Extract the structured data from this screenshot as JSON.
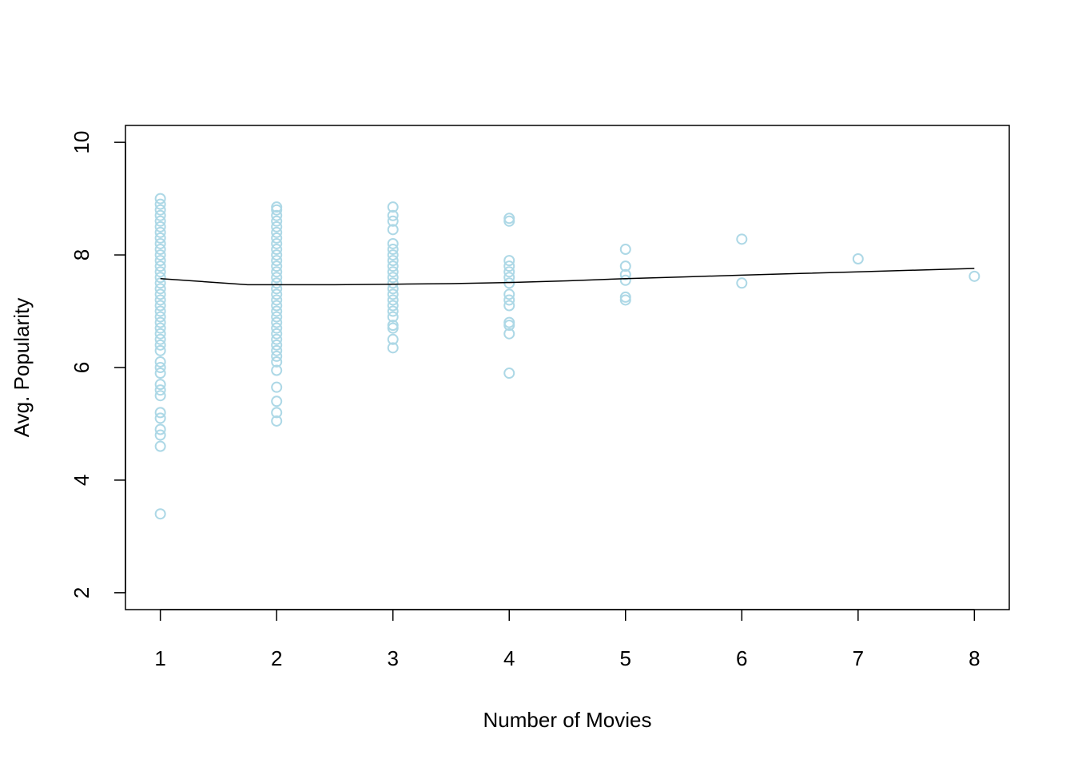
{
  "chart_data": {
    "type": "scatter",
    "title": "",
    "xlabel": "Number of Movies",
    "ylabel": "Avg. Popularity",
    "xlim": [
      0.7,
      8.3
    ],
    "ylim": [
      1.7,
      10.3
    ],
    "x_ticks": [
      1,
      2,
      3,
      4,
      5,
      6,
      7,
      8
    ],
    "y_ticks": [
      2,
      4,
      6,
      8,
      10
    ],
    "grid": false,
    "legend": "none",
    "colors": {
      "points": "#add8e6",
      "trend": "#000000",
      "frame": "#000000"
    },
    "series": [
      {
        "type": "scatter",
        "points": [
          [
            1,
            9.0
          ],
          [
            1,
            8.9
          ],
          [
            1,
            8.8
          ],
          [
            1,
            8.7
          ],
          [
            1,
            8.6
          ],
          [
            1,
            8.5
          ],
          [
            1,
            8.4
          ],
          [
            1,
            8.3
          ],
          [
            1,
            8.2
          ],
          [
            1,
            8.1
          ],
          [
            1,
            8.0
          ],
          [
            1,
            7.9
          ],
          [
            1,
            7.8
          ],
          [
            1,
            7.7
          ],
          [
            1,
            7.6
          ],
          [
            1,
            7.5
          ],
          [
            1,
            7.4
          ],
          [
            1,
            7.3
          ],
          [
            1,
            7.2
          ],
          [
            1,
            7.1
          ],
          [
            1,
            7.0
          ],
          [
            1,
            6.9
          ],
          [
            1,
            6.8
          ],
          [
            1,
            6.7
          ],
          [
            1,
            6.6
          ],
          [
            1,
            6.5
          ],
          [
            1,
            6.4
          ],
          [
            1,
            6.3
          ],
          [
            1,
            6.1
          ],
          [
            1,
            6.0
          ],
          [
            1,
            5.9
          ],
          [
            1,
            5.7
          ],
          [
            1,
            5.6
          ],
          [
            1,
            5.5
          ],
          [
            1,
            5.2
          ],
          [
            1,
            5.1
          ],
          [
            1,
            4.9
          ],
          [
            1,
            4.8
          ],
          [
            1,
            4.6
          ],
          [
            1,
            3.4
          ],
          [
            2,
            8.85
          ],
          [
            2,
            8.8
          ],
          [
            2,
            8.7
          ],
          [
            2,
            8.6
          ],
          [
            2,
            8.5
          ],
          [
            2,
            8.4
          ],
          [
            2,
            8.3
          ],
          [
            2,
            8.2
          ],
          [
            2,
            8.1
          ],
          [
            2,
            8.0
          ],
          [
            2,
            7.9
          ],
          [
            2,
            7.8
          ],
          [
            2,
            7.7
          ],
          [
            2,
            7.6
          ],
          [
            2,
            7.5
          ],
          [
            2,
            7.4
          ],
          [
            2,
            7.3
          ],
          [
            2,
            7.2
          ],
          [
            2,
            7.1
          ],
          [
            2,
            7.0
          ],
          [
            2,
            6.9
          ],
          [
            2,
            6.8
          ],
          [
            2,
            6.7
          ],
          [
            2,
            6.6
          ],
          [
            2,
            6.5
          ],
          [
            2,
            6.4
          ],
          [
            2,
            6.3
          ],
          [
            2,
            6.2
          ],
          [
            2,
            6.1
          ],
          [
            2,
            5.95
          ],
          [
            2,
            5.65
          ],
          [
            2,
            5.4
          ],
          [
            2,
            5.2
          ],
          [
            2,
            5.05
          ],
          [
            3,
            8.85
          ],
          [
            3,
            8.7
          ],
          [
            3,
            8.6
          ],
          [
            3,
            8.45
          ],
          [
            3,
            8.2
          ],
          [
            3,
            8.1
          ],
          [
            3,
            8.0
          ],
          [
            3,
            7.9
          ],
          [
            3,
            7.8
          ],
          [
            3,
            7.7
          ],
          [
            3,
            7.6
          ],
          [
            3,
            7.5
          ],
          [
            3,
            7.4
          ],
          [
            3,
            7.3
          ],
          [
            3,
            7.2
          ],
          [
            3,
            7.1
          ],
          [
            3,
            7.0
          ],
          [
            3,
            6.9
          ],
          [
            3,
            6.75
          ],
          [
            3,
            6.7
          ],
          [
            3,
            6.5
          ],
          [
            3,
            6.35
          ],
          [
            4,
            8.65
          ],
          [
            4,
            8.6
          ],
          [
            4,
            7.9
          ],
          [
            4,
            7.8
          ],
          [
            4,
            7.7
          ],
          [
            4,
            7.6
          ],
          [
            4,
            7.5
          ],
          [
            4,
            7.3
          ],
          [
            4,
            7.2
          ],
          [
            4,
            7.1
          ],
          [
            4,
            6.8
          ],
          [
            4,
            6.75
          ],
          [
            4,
            6.6
          ],
          [
            4,
            5.9
          ],
          [
            5,
            8.1
          ],
          [
            5,
            7.8
          ],
          [
            5,
            7.65
          ],
          [
            5,
            7.55
          ],
          [
            5,
            7.25
          ],
          [
            5,
            7.2
          ],
          [
            6,
            8.28
          ],
          [
            6,
            7.5
          ],
          [
            7,
            7.93
          ],
          [
            8,
            7.62
          ]
        ]
      },
      {
        "type": "line",
        "x": [
          1,
          1.75,
          2,
          2.5,
          3,
          3.5,
          4,
          4.5,
          5,
          5.5,
          6,
          6.5,
          7,
          7.5,
          8
        ],
        "y": [
          7.58,
          7.47,
          7.47,
          7.47,
          7.48,
          7.49,
          7.51,
          7.54,
          7.58,
          7.61,
          7.64,
          7.67,
          7.7,
          7.73,
          7.76
        ]
      }
    ]
  }
}
